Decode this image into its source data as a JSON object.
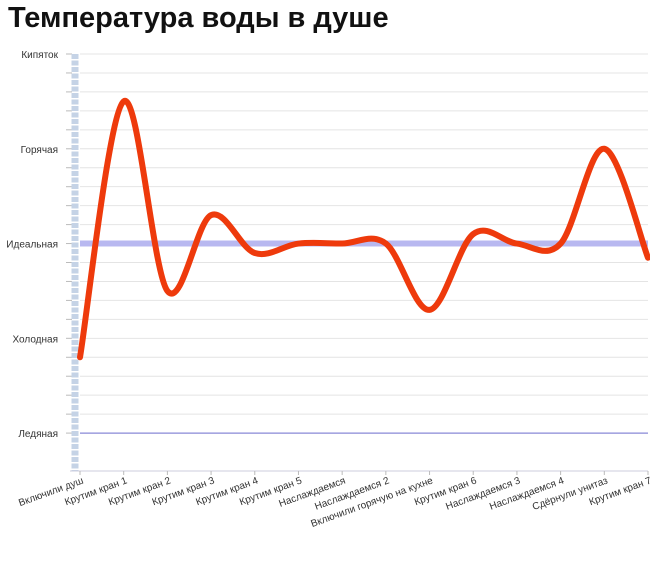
{
  "chart_data": {
    "type": "line",
    "title": "Температура воды в душе",
    "xlabel": "",
    "ylabel": "",
    "categories": [
      "Включили душ",
      "Крутим кран 1",
      "Крутим кран 2",
      "Крутим кран 3",
      "Крутим кран 4",
      "Крутим кран 5",
      "Наслаждаемся",
      "Наслаждаемся 2",
      "Включили горячую на кухне",
      "Крутим кран 6",
      "Наслаждаемся 3",
      "Наслаждаемся 4",
      "Сдёрнули унитаз",
      "Крутим кран 7"
    ],
    "y_tick_labels": [
      "Ледяная",
      "Холодная",
      "Идеальная",
      "Горячая",
      "Кипяток"
    ],
    "y_tick_values": [
      0,
      1,
      2,
      3,
      4
    ],
    "ylim": [
      -0.4,
      4
    ],
    "series": [
      {
        "values": [
          0.8,
          3.5,
          1.5,
          2.3,
          1.9,
          2.0,
          2.0,
          2.0,
          1.3,
          2.1,
          2.0,
          2.0,
          3.0,
          1.85
        ],
        "color": "#ee3a0c"
      }
    ],
    "reference_lines": [
      {
        "y": 2,
        "color": "#b8b8f0"
      },
      {
        "y": 0,
        "color": "#8a8ad8"
      }
    ],
    "grid": true
  }
}
